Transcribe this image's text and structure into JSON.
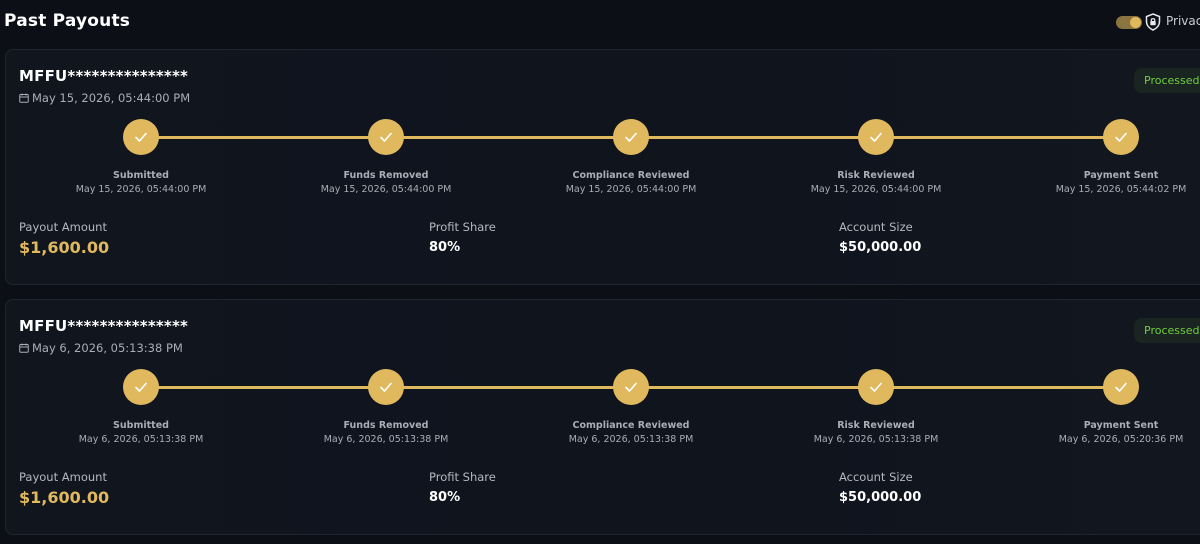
{
  "header": {
    "title": "Past Payouts",
    "privacy_label": "Privac"
  },
  "colors": {
    "accent": "#e0b85e",
    "status_green": "#6fcf3f",
    "background": "#0c0f16"
  },
  "payouts": [
    {
      "account_id": "MFFU***************",
      "date": "May 15, 2026, 05:44:00 PM",
      "status": "Processed",
      "steps": [
        {
          "label": "Submitted",
          "date": "May 15, 2026, 05:44:00 PM"
        },
        {
          "label": "Funds Removed",
          "date": "May 15, 2026, 05:44:00 PM"
        },
        {
          "label": "Compliance Reviewed",
          "date": "May 15, 2026, 05:44:00 PM"
        },
        {
          "label": "Risk Reviewed",
          "date": "May 15, 2026, 05:44:00 PM"
        },
        {
          "label": "Payment Sent",
          "date": "May 15, 2026, 05:44:02 PM"
        }
      ],
      "payout_amount_label": "Payout Amount",
      "payout_amount": "$1,600.00",
      "profit_share_label": "Profit Share",
      "profit_share": "80%",
      "account_size_label": "Account Size",
      "account_size": "$50,000.00"
    },
    {
      "account_id": "MFFU***************",
      "date": "May 6, 2026, 05:13:38 PM",
      "status": "Processed",
      "steps": [
        {
          "label": "Submitted",
          "date": "May 6, 2026, 05:13:38 PM"
        },
        {
          "label": "Funds Removed",
          "date": "May 6, 2026, 05:13:38 PM"
        },
        {
          "label": "Compliance Reviewed",
          "date": "May 6, 2026, 05:13:38 PM"
        },
        {
          "label": "Risk Reviewed",
          "date": "May 6, 2026, 05:13:38 PM"
        },
        {
          "label": "Payment Sent",
          "date": "May 6, 2026, 05:20:36 PM"
        }
      ],
      "payout_amount_label": "Payout Amount",
      "payout_amount": "$1,600.00",
      "profit_share_label": "Profit Share",
      "profit_share": "80%",
      "account_size_label": "Account Size",
      "account_size": "$50,000.00"
    }
  ]
}
